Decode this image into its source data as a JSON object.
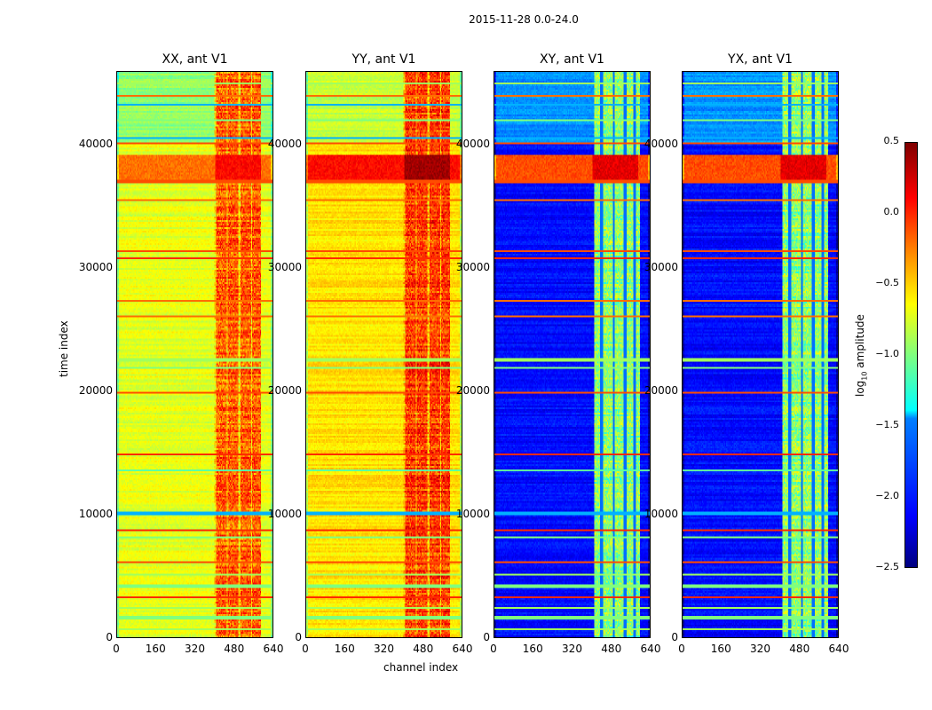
{
  "chart_data": {
    "type": "heatmap",
    "suptitle": "2015-11-28 0.0-24.0",
    "xlabel": "channel index",
    "ylabel": "time index",
    "xlim": [
      0,
      640
    ],
    "ylim": [
      0,
      46000
    ],
    "xticks": [
      "0",
      "160",
      "320",
      "480",
      "640"
    ],
    "yticks": [
      "0",
      "10000",
      "20000",
      "30000",
      "40000"
    ],
    "colorbar": {
      "label": "log10 amplitude",
      "range": [
        -2.5,
        0.5
      ],
      "ticks": [
        "0.5",
        "0.0",
        "−0.5",
        "−1.0",
        "−1.5",
        "−2.0",
        "−2.5"
      ],
      "colormap": "jet"
    },
    "panels": [
      {
        "title": "XX, ant V1",
        "base": -0.7,
        "bright_channels": [
          400,
          590
        ],
        "bright_level": -0.15,
        "upper_base": -0.95,
        "stripe_channels": [],
        "bright_band": [
          37000,
          39200,
          -0.2
        ]
      },
      {
        "title": "YY, ant V1",
        "base": -0.55,
        "bright_channels": [
          400,
          590
        ],
        "bright_level": -0.05,
        "upper_base": -0.8,
        "stripe_channels": [],
        "bright_band": [
          37000,
          39200,
          0.1
        ]
      },
      {
        "title": "XY, ant V1",
        "base": -2.1,
        "bright_channels": [
          410,
          600
        ],
        "bright_level": -0.95,
        "upper_base": -1.7,
        "stripe_channels": [
          440,
          490,
          535,
          575
        ],
        "bright_band": [
          37000,
          39200,
          -0.1
        ]
      },
      {
        "title": "YX, ant V1",
        "base": -2.1,
        "bright_channels": [
          410,
          600
        ],
        "bright_level": -0.95,
        "upper_base": -1.7,
        "stripe_channels": [
          440,
          490,
          535,
          575
        ],
        "bright_band": [
          37000,
          39200,
          -0.1
        ]
      }
    ],
    "flag_rows": [
      [
        600,
        -0.9
      ],
      [
        1500,
        -1.0
      ],
      [
        2300,
        -0.9
      ],
      [
        3200,
        0.0
      ],
      [
        4100,
        -1.0
      ],
      [
        5000,
        -0.9
      ],
      [
        6000,
        -0.1
      ],
      [
        8000,
        -1.0
      ],
      [
        8600,
        0.0
      ],
      [
        10000,
        -1.6
      ],
      [
        13500,
        -1.1
      ],
      [
        14800,
        0.0
      ],
      [
        19800,
        -0.1
      ],
      [
        21800,
        -1.0
      ],
      [
        22500,
        -0.9
      ],
      [
        26000,
        -0.2
      ],
      [
        27300,
        -0.2
      ],
      [
        30800,
        0.0
      ],
      [
        31300,
        -0.1
      ],
      [
        35500,
        -0.2
      ],
      [
        37000,
        -0.1
      ],
      [
        40100,
        -0.1
      ],
      [
        40500,
        -1.6
      ],
      [
        42000,
        -1.0
      ],
      [
        43300,
        -1.6
      ],
      [
        44000,
        -0.2
      ],
      [
        45000,
        -0.9
      ]
    ]
  }
}
